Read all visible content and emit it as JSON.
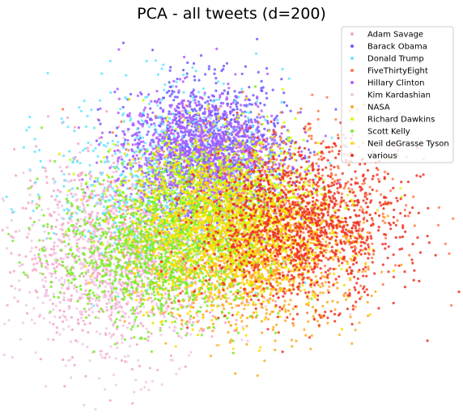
{
  "chart_data": {
    "type": "scatter",
    "title": "PCA - all tweets (d=200)",
    "xlabel": "",
    "ylabel": "",
    "xlim": [
      -1.0,
      1.0
    ],
    "ylim": [
      -0.9,
      0.9
    ],
    "axes_visible": false,
    "grid": false,
    "legend_position": "top-right",
    "series": [
      {
        "name": "Adam Savage",
        "color": "#f4a6c8",
        "points_estimated": 1100,
        "center": [
          -0.5,
          -0.15
        ],
        "spread": [
          0.26,
          0.22
        ]
      },
      {
        "name": "Barack Obama",
        "color": "#6b5cff",
        "points_estimated": 1100,
        "center": [
          -0.1,
          0.32
        ],
        "spread": [
          0.18,
          0.16
        ]
      },
      {
        "name": "Donald Trump",
        "color": "#66e6ff",
        "points_estimated": 800,
        "center": [
          -0.3,
          0.18
        ],
        "spread": [
          0.28,
          0.22
        ]
      },
      {
        "name": "FiveThirtyEight",
        "color": "#ff7a45",
        "points_estimated": 700,
        "center": [
          0.2,
          0.05
        ],
        "spread": [
          0.3,
          0.22
        ]
      },
      {
        "name": "Hillary Clinton",
        "color": "#b25cff",
        "points_estimated": 1100,
        "center": [
          -0.15,
          0.3
        ],
        "spread": [
          0.2,
          0.14
        ]
      },
      {
        "name": "Kim Kardashian",
        "color": "#f0c8e8",
        "points_estimated": 700,
        "center": [
          -0.55,
          -0.25
        ],
        "spread": [
          0.26,
          0.24
        ]
      },
      {
        "name": "NASA",
        "color": "#ffaa22",
        "points_estimated": 900,
        "center": [
          0.1,
          -0.22
        ],
        "spread": [
          0.26,
          0.16
        ]
      },
      {
        "name": "Richard Dawkins",
        "color": "#ccff00",
        "points_estimated": 1000,
        "center": [
          -0.05,
          0.08
        ],
        "spread": [
          0.24,
          0.16
        ]
      },
      {
        "name": "Scott Kelly",
        "color": "#77ee22",
        "points_estimated": 1300,
        "center": [
          -0.35,
          -0.15
        ],
        "spread": [
          0.24,
          0.18
        ]
      },
      {
        "name": "Neil deGrasse Tyson",
        "color": "#ffdd00",
        "points_estimated": 1300,
        "center": [
          -0.02,
          -0.08
        ],
        "spread": [
          0.24,
          0.18
        ]
      },
      {
        "name": "various",
        "color": "#ee3322",
        "points_estimated": 1300,
        "center": [
          0.32,
          -0.05
        ],
        "spread": [
          0.24,
          0.18
        ]
      }
    ]
  }
}
